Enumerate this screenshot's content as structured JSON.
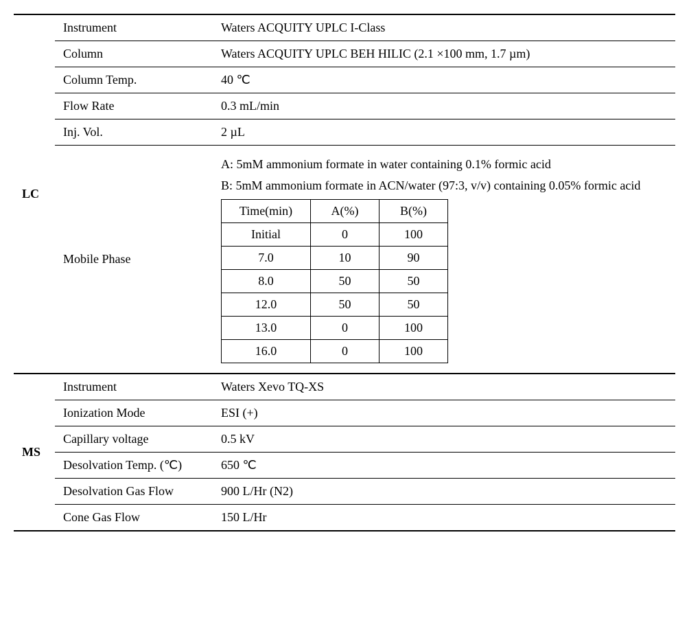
{
  "lc": {
    "label": "LC",
    "rows": [
      {
        "param": "Instrument",
        "value": "Waters ACQUITY UPLC I-Class"
      },
      {
        "param": "Column",
        "value": "Waters ACQUITY UPLC BEH HILIC (2.1 ×100 mm, 1.7 µm)"
      },
      {
        "param": "Column Temp.",
        "value": "40 ℃"
      },
      {
        "param": "Flow Rate",
        "value": "0.3 mL/min"
      },
      {
        "param": "Inj. Vol.",
        "value": "2 µL"
      }
    ],
    "mobilePhase": {
      "label": "Mobile Phase",
      "textA": "A: 5mM ammonium formate in water containing 0.1% formic acid",
      "textB": "B: 5mM ammonium formate in ACN/water (97:3, v/v) containing 0.05% formic acid",
      "gradient": {
        "headers": [
          "Time(min)",
          "A(%)",
          "B(%)"
        ],
        "rows": [
          [
            "Initial",
            "0",
            "100"
          ],
          [
            "7.0",
            "10",
            "90"
          ],
          [
            "8.0",
            "50",
            "50"
          ],
          [
            "12.0",
            "50",
            "50"
          ],
          [
            "13.0",
            "0",
            "100"
          ],
          [
            "16.0",
            "0",
            "100"
          ]
        ]
      }
    }
  },
  "ms": {
    "label": "MS",
    "rows": [
      {
        "param": "Instrument",
        "value": "Waters Xevo TQ-XS"
      },
      {
        "param": "Ionization Mode",
        "value": "ESI (+)"
      },
      {
        "param": "Capillary voltage",
        "value": "0.5 kV"
      },
      {
        "param": "Desolvation Temp. (℃)",
        "value": "650 ℃"
      },
      {
        "param": "Desolvation Gas Flow",
        "value": "900 L/Hr (N2)"
      },
      {
        "param": "Cone Gas Flow",
        "value": "150 L/Hr"
      }
    ]
  },
  "style": {
    "gradientColWidths": [
      130,
      100,
      100
    ],
    "fontSize": 18,
    "textColor": "#000000",
    "borderColor": "#000000"
  }
}
